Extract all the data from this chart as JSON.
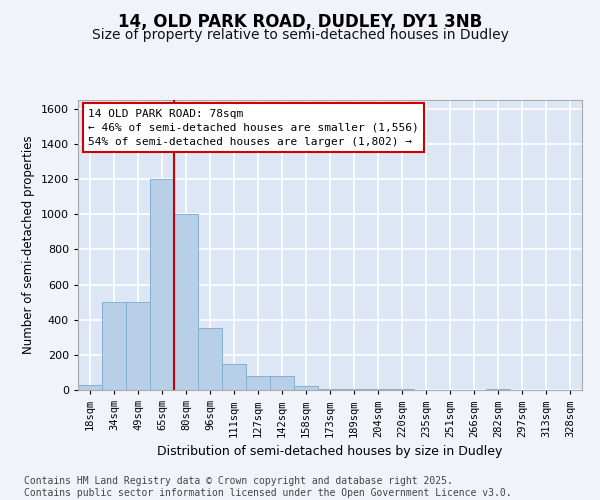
{
  "title1": "14, OLD PARK ROAD, DUDLEY, DY1 3NB",
  "title2": "Size of property relative to semi-detached houses in Dudley",
  "xlabel": "Distribution of semi-detached houses by size in Dudley",
  "ylabel": "Number of semi-detached properties",
  "categories": [
    "18sqm",
    "34sqm",
    "49sqm",
    "65sqm",
    "80sqm",
    "96sqm",
    "111sqm",
    "127sqm",
    "142sqm",
    "158sqm",
    "173sqm",
    "189sqm",
    "204sqm",
    "220sqm",
    "235sqm",
    "251sqm",
    "266sqm",
    "282sqm",
    "297sqm",
    "313sqm",
    "328sqm"
  ],
  "values": [
    30,
    500,
    500,
    1200,
    1000,
    350,
    150,
    80,
    80,
    25,
    5,
    5,
    5,
    5,
    0,
    0,
    0,
    5,
    0,
    0,
    0
  ],
  "bar_color": "#b8cfe8",
  "bar_edge_color": "#7baad0",
  "background_color": "#dce6f5",
  "grid_color": "#ffffff",
  "annotation_box_color": "#cc0000",
  "annotation_text": "14 OLD PARK ROAD: 78sqm\n← 46% of semi-detached houses are smaller (1,556)\n54% of semi-detached houses are larger (1,802) →",
  "vline_color": "#cc0000",
  "ylim": [
    0,
    1650
  ],
  "yticks": [
    0,
    200,
    400,
    600,
    800,
    1000,
    1200,
    1400,
    1600
  ],
  "footer": "Contains HM Land Registry data © Crown copyright and database right 2025.\nContains public sector information licensed under the Open Government Licence v3.0.",
  "title_fontsize": 12,
  "subtitle_fontsize": 10,
  "annotation_fontsize": 8,
  "footer_fontsize": 7,
  "fig_bg": "#f0f4fa"
}
